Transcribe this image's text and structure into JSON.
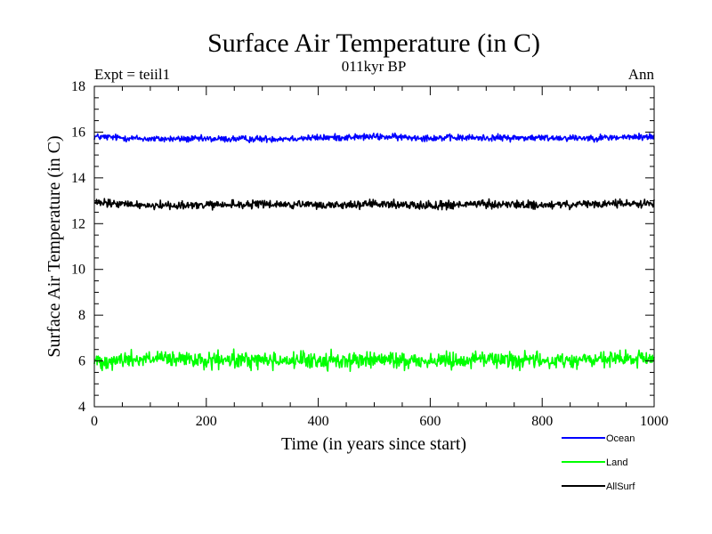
{
  "chart_data": {
    "type": "line",
    "title": "Surface Air Temperature (in C)",
    "subtitle": "011kyr BP",
    "experiment_label": "Expt = teiil1",
    "period_label": "Ann",
    "xlabel": "Time (in years since start)",
    "ylabel": "Surface Air Temperature (in C)",
    "xlim": [
      0,
      1000
    ],
    "ylim": [
      4,
      18
    ],
    "x_ticks": [
      0,
      200,
      400,
      600,
      800,
      1000
    ],
    "y_ticks": [
      4,
      6,
      8,
      10,
      12,
      14,
      16,
      18
    ],
    "x_minor_step": 50,
    "y_minor_step": 0.5,
    "grid": false,
    "legend_position": "bottom-right, below plot",
    "x": {
      "start": 0,
      "end": 1000,
      "step": 1
    },
    "series": [
      {
        "name": "Ocean",
        "color": "#0000ff",
        "mean": 15.75,
        "noise_amplitude": 0.12,
        "x_sample": [
          0,
          100,
          200,
          300,
          400,
          500,
          600,
          700,
          800,
          900,
          1000
        ],
        "values_sample": [
          15.8,
          15.7,
          15.7,
          15.7,
          15.75,
          15.8,
          15.75,
          15.75,
          15.75,
          15.75,
          15.8
        ]
      },
      {
        "name": "Land",
        "color": "#00ff00",
        "mean": 6.05,
        "noise_amplitude": 0.3,
        "x_sample": [
          0,
          100,
          200,
          300,
          400,
          500,
          600,
          700,
          800,
          900,
          1000
        ],
        "values_sample": [
          6.0,
          6.1,
          6.0,
          6.05,
          6.0,
          6.05,
          6.0,
          6.1,
          6.0,
          6.05,
          6.1
        ]
      },
      {
        "name": "AllSurf",
        "color": "#000000",
        "mean": 12.85,
        "noise_amplitude": 0.15,
        "x_sample": [
          0,
          100,
          200,
          300,
          400,
          500,
          600,
          700,
          800,
          900,
          1000
        ],
        "values_sample": [
          12.9,
          12.8,
          12.8,
          12.85,
          12.8,
          12.85,
          12.8,
          12.85,
          12.8,
          12.85,
          12.9
        ]
      }
    ]
  }
}
